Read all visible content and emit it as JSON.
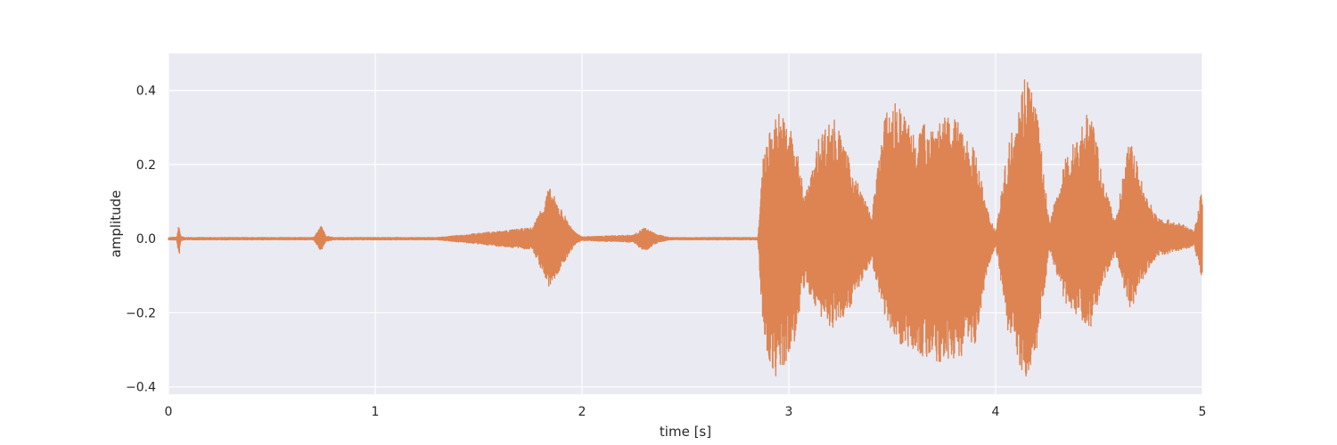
{
  "chart_data": {
    "type": "line",
    "title": "",
    "xlabel": "time [s]",
    "ylabel": "amplitude",
    "xlim": [
      0,
      5
    ],
    "ylim": [
      -0.42,
      0.5
    ],
    "x_ticks": [
      0,
      1,
      2,
      3,
      4,
      5
    ],
    "x_tick_labels": [
      "0",
      "1",
      "2",
      "3",
      "4",
      "5"
    ],
    "y_ticks": [
      -0.4,
      -0.2,
      0.0,
      0.2,
      0.4
    ],
    "y_tick_labels": [
      "−0.4",
      "−0.2",
      "0.0",
      "0.2",
      "0.4"
    ],
    "grid": true,
    "legend": "none",
    "series": [
      {
        "color": "#dd8452",
        "envelope": {
          "t": [
            0.0,
            0.04,
            0.05,
            0.06,
            0.08,
            0.7,
            0.74,
            0.76,
            0.8,
            1.3,
            1.76,
            1.8,
            1.84,
            1.9,
            1.96,
            2.0,
            2.25,
            2.3,
            2.36,
            2.42,
            2.85,
            2.88,
            2.95,
            3.02,
            3.08,
            3.12,
            3.15,
            3.22,
            3.3,
            3.4,
            3.46,
            3.52,
            3.6,
            3.7,
            3.8,
            3.9,
            3.96,
            4.0,
            4.06,
            4.1,
            4.15,
            4.2,
            4.26,
            4.34,
            4.4,
            4.46,
            4.52,
            4.58,
            4.65,
            4.72,
            4.78,
            4.84,
            4.9,
            4.96,
            5.0
          ],
          "upper": [
            0.003,
            0.004,
            0.038,
            0.006,
            0.003,
            0.003,
            0.036,
            0.008,
            0.003,
            0.003,
            0.03,
            0.08,
            0.14,
            0.08,
            0.02,
            0.005,
            0.01,
            0.03,
            0.012,
            0.003,
            0.003,
            0.25,
            0.35,
            0.29,
            0.12,
            0.2,
            0.29,
            0.33,
            0.2,
            0.06,
            0.33,
            0.37,
            0.3,
            0.32,
            0.33,
            0.24,
            0.08,
            0.02,
            0.25,
            0.35,
            0.47,
            0.35,
            0.04,
            0.22,
            0.29,
            0.37,
            0.15,
            0.05,
            0.28,
            0.13,
            0.06,
            0.05,
            0.04,
            0.02,
            0.15
          ],
          "lower": [
            -0.003,
            -0.004,
            -0.055,
            -0.006,
            -0.003,
            -0.003,
            -0.035,
            -0.008,
            -0.003,
            -0.003,
            -0.03,
            -0.08,
            -0.135,
            -0.08,
            -0.02,
            -0.005,
            -0.01,
            -0.035,
            -0.012,
            -0.003,
            -0.003,
            -0.3,
            -0.39,
            -0.3,
            -0.12,
            -0.18,
            -0.21,
            -0.25,
            -0.18,
            -0.06,
            -0.2,
            -0.28,
            -0.3,
            -0.34,
            -0.33,
            -0.29,
            -0.08,
            -0.02,
            -0.25,
            -0.33,
            -0.38,
            -0.3,
            -0.03,
            -0.18,
            -0.21,
            -0.24,
            -0.12,
            -0.04,
            -0.2,
            -0.1,
            -0.05,
            -0.04,
            -0.03,
            -0.02,
            -0.12
          ]
        }
      }
    ]
  }
}
